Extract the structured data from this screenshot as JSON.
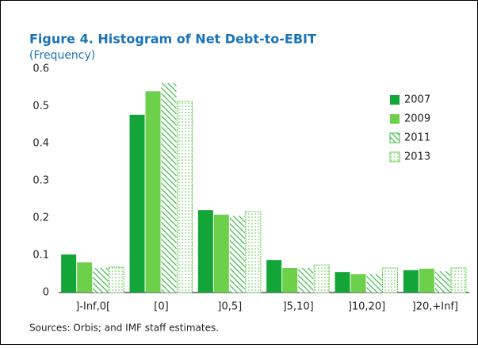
{
  "chart_data": {
    "type": "bar",
    "title": "Figure 4. Histogram of Net Debt-to-EBIT",
    "subtitle": "(Frequency)",
    "source": "Sources: Orbis; and IMF staff estimates.",
    "categories": [
      "]-Inf,0[",
      "[0]",
      "]0,5]",
      "]5,10]",
      "]10,20]",
      "]20,+Inf]"
    ],
    "series": [
      {
        "name": "2007",
        "color": "#13a538",
        "fill": "solid",
        "values": [
          0.102,
          0.477,
          0.221,
          0.087,
          0.055,
          0.06
        ]
      },
      {
        "name": "2009",
        "color": "#6cd04a",
        "fill": "solid",
        "values": [
          0.081,
          0.54,
          0.209,
          0.066,
          0.049,
          0.064
        ]
      },
      {
        "name": "2011",
        "color": "#3dbb45",
        "fill": "hatch",
        "values": [
          0.066,
          0.562,
          0.206,
          0.066,
          0.049,
          0.057
        ]
      },
      {
        "name": "2013",
        "color": "#5cc84a",
        "fill": "dots",
        "values": [
          0.068,
          0.513,
          0.217,
          0.074,
          0.066,
          0.066
        ]
      }
    ],
    "ylim": [
      0,
      0.6
    ],
    "yticks": [
      0,
      0.1,
      0.2,
      0.3,
      0.4,
      0.5,
      0.6
    ],
    "grid": false,
    "legend": "right"
  }
}
